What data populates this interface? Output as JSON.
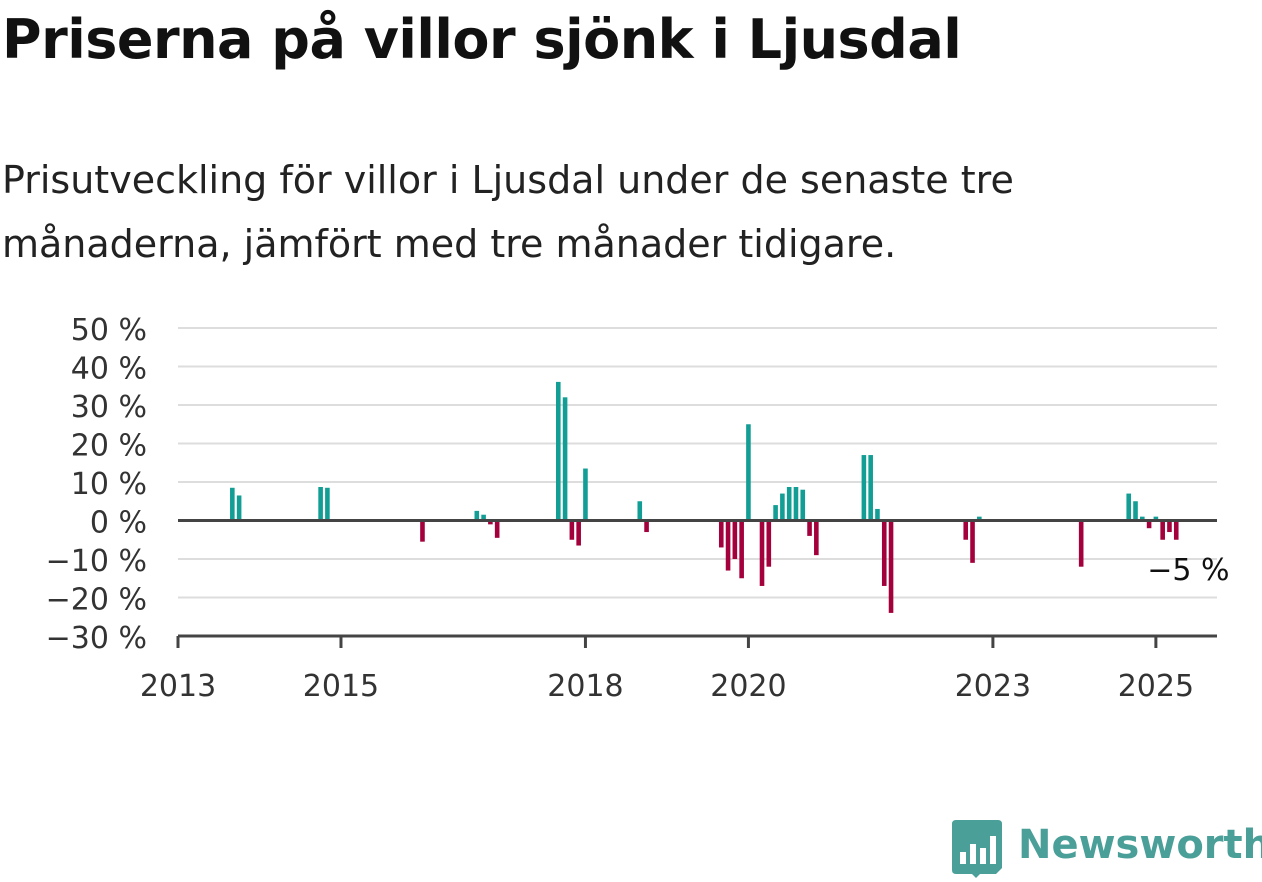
{
  "title": "Priserna på villor sjönk i Ljusdal",
  "subtitle": "Prisutveckling för villor i Ljusdal under de senaste tre månaderna, jämfört med tre månader tidigare.",
  "brand": {
    "name": "Newsworthy",
    "logo_icon": "bar-chart-badge-icon",
    "color": "#4a9f99"
  },
  "chart_data": {
    "type": "bar",
    "title": "",
    "xlabel": "",
    "ylabel": "",
    "ylim": [
      -30,
      50
    ],
    "xlim": [
      "2013-01",
      "2025-10"
    ],
    "grid": true,
    "legend": "none",
    "y_ticks": [
      50,
      40,
      30,
      20,
      10,
      0,
      -10,
      -20,
      -30
    ],
    "y_tick_labels": [
      "50 %",
      "40 %",
      "30 %",
      "20 %",
      "10 %",
      "0 %",
      "−10 %",
      "−20 %",
      "−30 %"
    ],
    "x_ticks": [
      "2013-01",
      "2015-01",
      "2018-01",
      "2020-01",
      "2023-01",
      "2025-01"
    ],
    "x_tick_labels": [
      "2013",
      "2015",
      "2018",
      "2020",
      "2023",
      "2025"
    ],
    "colors": {
      "positive": "#139e95",
      "negative": "#a3003c",
      "grid": "#dddddd",
      "axis": "#444444"
    },
    "annotation": {
      "x": "2025-03",
      "y": -5,
      "text": "−5 %"
    },
    "x": [
      "2013-09",
      "2013-10",
      "2014-10",
      "2014-11",
      "2016-01",
      "2016-09",
      "2016-10",
      "2016-11",
      "2016-12",
      "2017-09",
      "2017-10",
      "2017-11",
      "2017-12",
      "2018-01",
      "2018-09",
      "2018-10",
      "2019-09",
      "2019-10",
      "2019-11",
      "2019-12",
      "2020-01",
      "2020-03",
      "2020-04",
      "2020-05",
      "2020-06",
      "2020-07",
      "2020-08",
      "2020-09",
      "2020-10",
      "2020-11",
      "2021-06",
      "2021-07",
      "2021-08",
      "2021-09",
      "2021-10",
      "2022-09",
      "2022-10",
      "2022-11",
      "2024-02",
      "2024-09",
      "2024-10",
      "2024-11",
      "2024-12",
      "2025-01",
      "2025-02",
      "2025-03",
      "2025-04"
    ],
    "values": [
      8.5,
      6.5,
      8.7,
      8.5,
      -5.5,
      2.5,
      1.5,
      -1,
      -4.5,
      36,
      32,
      -5,
      -6.5,
      13.5,
      5,
      -3,
      -7,
      -13,
      -10,
      -15,
      25,
      -17,
      -12,
      4,
      7,
      8.7,
      8.7,
      8,
      -4,
      -9,
      17,
      17,
      3,
      -17,
      -24,
      -5,
      -11,
      1,
      -12,
      7,
      5,
      1,
      -2,
      1,
      -5,
      -3,
      -5
    ]
  }
}
